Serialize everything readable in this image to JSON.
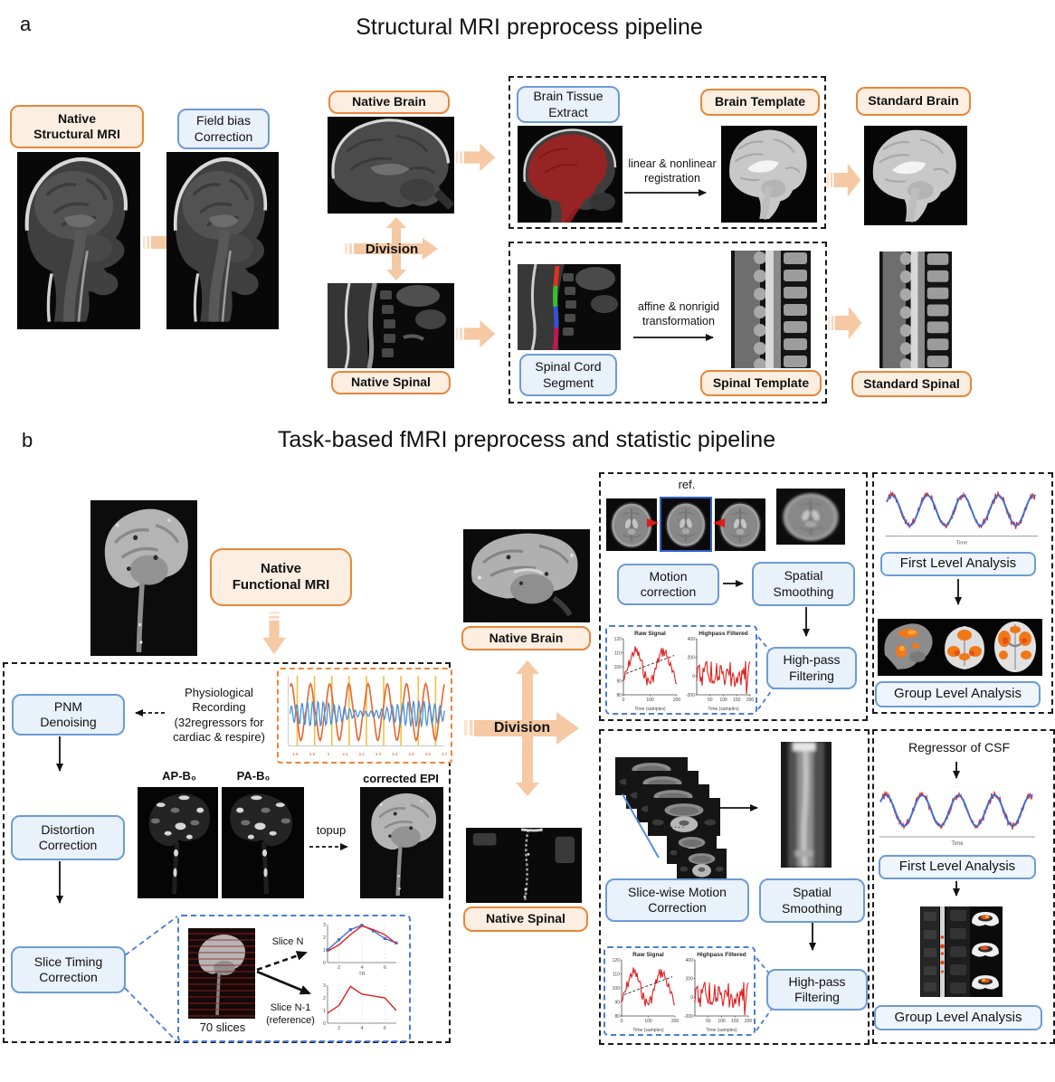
{
  "colors": {
    "orange_border": "#e8863c",
    "orange_fill": "#fceee1",
    "blue_border": "#6c9bd5",
    "blue_fill": "#e9f1fb",
    "arrow_peach": "#f5c9a4",
    "dashed_black": "#1b1b1b",
    "dashed_blue": "#4a7cd6",
    "dashed_orange": "#f08438",
    "signal_red": "#e02020",
    "wave_blue": "#3f6fd1",
    "activation_orange": "#f07818"
  },
  "panel_a": {
    "label": "a",
    "title": "Structural MRI preprocess pipeline",
    "native_structural": "Native\nStructural MRI",
    "field_bias": "Field bias\nCorrection",
    "native_brain": "Native Brain",
    "division": "Division",
    "native_spinal": "Native Spinal",
    "brain_tissue_extract": "Brain Tissue\nExtract",
    "linear_registration": "linear & nonlinear\nregistration",
    "brain_template": "Brain Template",
    "standard_brain": "Standard Brain",
    "spinal_cord_segment": "Spinal Cord\nSegment",
    "affine_transformation": "affine & nonrigid\ntransformation",
    "spinal_template": "Spinal Template",
    "standard_spinal": "Standard Spinal"
  },
  "panel_b": {
    "label": "b",
    "title": "Task-based fMRI preprocess and statistic pipeline",
    "native_functional": "Native\nFunctional MRI",
    "pnm_denoising": "PNM\nDenoising",
    "physiological_recording": "Physiological\nRecording\n(32regressors for\ncardiac & respire)",
    "ap_b0": "AP-B₀",
    "pa_b0": "PA-B₀",
    "corrected_epi": "corrected EPI",
    "topup": "topup",
    "distortion_correction": "Distortion\nCorrection",
    "slice_timing_correction": "Slice Timing\nCorrection",
    "slices_70": "70 slices",
    "slice_n": "Slice N",
    "slice_n1": "Slice N-1\n(reference)",
    "ellipsis": "......",
    "native_brain": "Native Brain",
    "division": "Division",
    "native_spinal": "Native Spinal",
    "ref": "ref.",
    "motion_correction": "Motion\ncorrection",
    "spatial_smoothing": "Spatial\nSmoothing",
    "highpass_filtering": "High-pass\nFiltering",
    "slice_wise_motion": "Slice-wise Motion\nCorrection",
    "regressor_csf": "Regressor of CSF",
    "first_level": "First Level Analysis",
    "group_level": "Group Level Analysis"
  },
  "plots": {
    "physio": {
      "x_ticks": [
        "1.8",
        "1.9",
        "2",
        "2.1",
        "2.2",
        "2.3",
        "2.4",
        "2.5",
        "2.6",
        "2.7"
      ]
    },
    "slice_n_plot": {
      "y_ticks": [
        "3",
        "2",
        "1",
        "0"
      ],
      "x_ticks": [
        "2",
        "4",
        "6"
      ],
      "xlabel": "TR",
      "series": [
        {
          "name": "slice-n-blue",
          "values": [
            1.0,
            1.8,
            2.6,
            2.95,
            2.5,
            1.9,
            1.55
          ]
        },
        {
          "name": "slice-n-red",
          "values": [
            0.9,
            1.4,
            2.2,
            2.9,
            2.6,
            2.2,
            1.5
          ]
        }
      ]
    },
    "slice_ref_plot": {
      "y_ticks": [
        "3",
        "2",
        "1",
        "0"
      ],
      "x_ticks": [
        "2",
        "4",
        "6"
      ],
      "series": [
        {
          "name": "slice-ref-red",
          "values": [
            0.8,
            1.4,
            2.9,
            2.3,
            2.15,
            2.0,
            1.0
          ]
        }
      ]
    },
    "raw_signal": {
      "title": "Raw Signal",
      "y_ticks": [
        "120",
        "110",
        "100",
        "90",
        "80"
      ],
      "x_ticks": [
        "0",
        "100",
        "200"
      ],
      "xlabel": "Time (samples)"
    },
    "highpass": {
      "title": "Highpass Filtered",
      "y_ticks": [
        "400",
        "200",
        "0",
        "-200"
      ],
      "x_ticks": [
        "50",
        "100",
        "150",
        "200"
      ],
      "xlabel": "Time (samples)"
    },
    "glm_wave": {
      "xlabel": "Time"
    }
  }
}
